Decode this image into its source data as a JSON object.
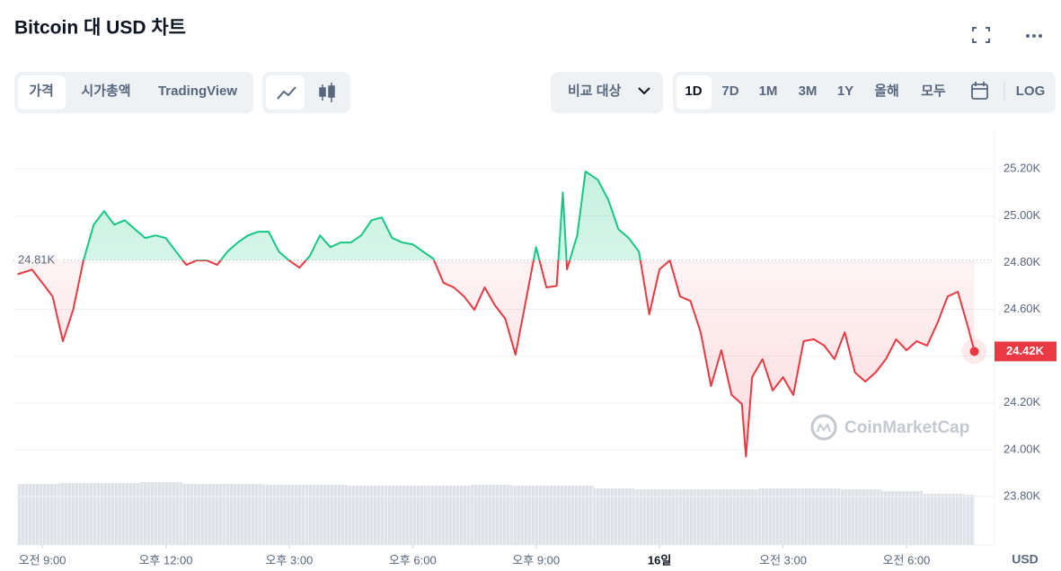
{
  "ui": {
    "title": "Bitcoin 대 USD 차트",
    "tabs": [
      "가격",
      "시가총액",
      "TradingView"
    ],
    "compare": "비교 대상",
    "ranges": [
      "1D",
      "7D",
      "1M",
      "3M",
      "1Y",
      "올해",
      "모두"
    ],
    "log": "LOG"
  },
  "chart_data": {
    "type": "line",
    "currency": "USD",
    "watermark": "CoinMarketCap",
    "x": [
      8.4,
      8.75,
      9,
      9.25,
      9.5,
      9.75,
      10,
      10.25,
      10.5,
      10.75,
      11,
      11.25,
      11.5,
      11.75,
      12,
      12.25,
      12.5,
      12.75,
      13,
      13.25,
      13.5,
      13.75,
      14,
      14.25,
      14.5,
      14.75,
      15,
      15.25,
      15.5,
      15.75,
      16,
      16.25,
      16.5,
      16.75,
      17,
      17.25,
      17.5,
      17.75,
      18,
      18.25,
      18.5,
      18.75,
      19,
      19.25,
      19.5,
      19.75,
      20,
      20.25,
      20.5,
      20.75,
      21,
      21.25,
      21.5,
      21.65,
      21.75,
      22,
      22.2,
      22.5,
      22.75,
      23,
      23.25,
      23.5,
      23.75,
      24,
      24.25,
      24.5,
      24.75,
      25,
      25.25,
      25.5,
      25.75,
      26,
      26.1,
      26.25,
      26.5,
      26.75,
      27,
      27.25,
      27.5,
      27.75,
      28,
      28.25,
      28.5,
      28.75,
      29,
      29.25,
      29.5,
      29.75,
      30,
      30.25,
      30.5,
      30.75,
      31,
      31.25,
      31.5,
      31.65
    ],
    "values": [
      24750,
      24770,
      24713,
      24655,
      24464,
      24598,
      24809,
      24962,
      25020,
      24962,
      24981,
      24943,
      24905,
      24916,
      24905,
      24847,
      24790,
      24809,
      24809,
      24790,
      24847,
      24886,
      24916,
      24932,
      24932,
      24847,
      24809,
      24778,
      24828,
      24916,
      24866,
      24886,
      24886,
      24916,
      24981,
      24993,
      24905,
      24886,
      24878,
      24847,
      24817,
      24713,
      24694,
      24655,
      24598,
      24694,
      24617,
      24560,
      24406,
      24636,
      24866,
      24694,
      24700,
      25100,
      24771,
      24916,
      25190,
      25154,
      25070,
      24943,
      24905,
      24847,
      24579,
      24771,
      24809,
      24655,
      24636,
      24502,
      24272,
      24425,
      24234,
      24195,
      23970,
      24310,
      24387,
      24253,
      24310,
      24234,
      24464,
      24472,
      24445,
      24387,
      24502,
      24330,
      24291,
      24330,
      24387,
      24472,
      24425,
      24464,
      24445,
      24540,
      24655,
      24675,
      24521,
      24420
    ],
    "last_label": "24.42K",
    "baseline": {
      "value": 24810,
      "label": "24.81K"
    },
    "up_color": "#16c784",
    "down_color": "#ea3943",
    "xlim": [
      8.3,
      32.14
    ],
    "ylim": [
      23600,
      25370
    ],
    "xticks": [
      {
        "value": 9,
        "label": "오전 9:00"
      },
      {
        "value": 12,
        "label": "오후 12:00"
      },
      {
        "value": 15,
        "label": "오후 3:00"
      },
      {
        "value": 18,
        "label": "오후 6:00"
      },
      {
        "value": 21,
        "label": "오후 9:00"
      },
      {
        "value": 24,
        "label": "16일"
      },
      {
        "value": 27,
        "label": "오전 3:00"
      },
      {
        "value": 30,
        "label": "오전 6:00"
      }
    ],
    "yticks": [
      {
        "value": 23800,
        "label": "23.80K"
      },
      {
        "value": 24000,
        "label": "24.00K"
      },
      {
        "value": 24200,
        "label": "24.20K"
      },
      {
        "value": 24400,
        "label": "24.40K"
      },
      {
        "value": 24600,
        "label": "24.60K"
      },
      {
        "value": 24800,
        "label": "24.80K"
      },
      {
        "value": 25000,
        "label": "25.00K"
      },
      {
        "value": 25200,
        "label": "25.20K"
      }
    ],
    "grid": true,
    "volume": {
      "bins": [
        8.4,
        9.4,
        10.4,
        11.4,
        12.4,
        13.4,
        14.4,
        15.4,
        16.4,
        17.4,
        18.4,
        19.4,
        20.4,
        21.4,
        22.4,
        23.4,
        24.4,
        25.4,
        26.4,
        27.4,
        28.4,
        29.4,
        30.4,
        31.4,
        31.65
      ],
      "values": [
        68,
        69,
        69,
        70,
        68,
        68,
        67,
        67,
        66,
        66,
        66,
        67,
        66,
        66,
        63,
        62,
        62,
        62,
        63,
        63,
        62,
        60,
        57,
        56
      ],
      "color": "#dfe2e7"
    }
  }
}
